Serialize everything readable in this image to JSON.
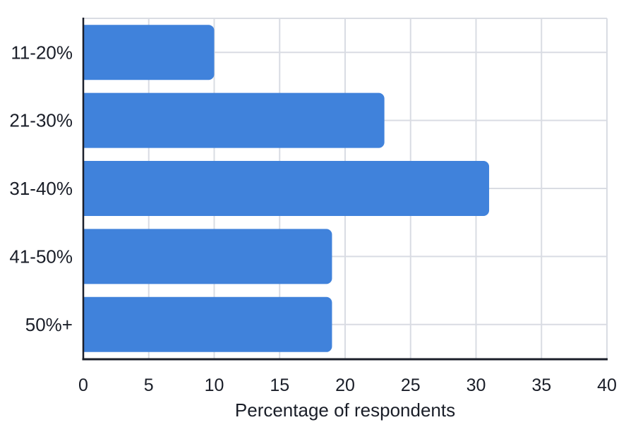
{
  "chart_data": {
    "type": "bar",
    "orientation": "horizontal",
    "categories": [
      "11-20%",
      "21-30%",
      "31-40%",
      "41-50%",
      "50%+"
    ],
    "values": [
      10,
      23,
      31,
      19,
      19
    ],
    "title": "",
    "xlabel": "Percentage of respondents",
    "ylabel": "",
    "xlim": [
      0,
      40
    ],
    "xticks": [
      0,
      5,
      10,
      15,
      20,
      25,
      30,
      35,
      40
    ],
    "grid": true,
    "legend": false,
    "colors": {
      "bar": "#4082DB",
      "grid": "#D9DCE3",
      "axis": "#1B1F2A",
      "text": "#1A1E28",
      "background": "#FFFFFF"
    }
  }
}
